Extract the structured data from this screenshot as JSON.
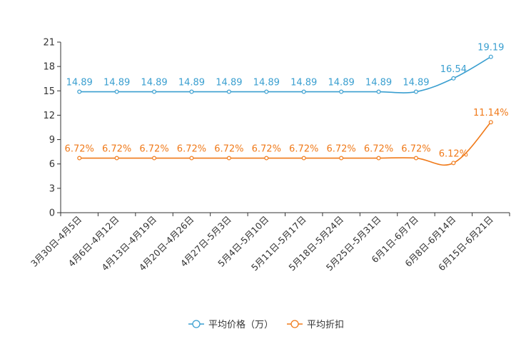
{
  "chart_data": {
    "type": "line",
    "title": "",
    "xlabel": "",
    "ylabel": "",
    "ylim": [
      0,
      21
    ],
    "yticks": [
      0,
      3,
      6,
      9,
      12,
      15,
      18,
      21
    ],
    "ytick_labels": [
      "0",
      "3",
      "6",
      "9",
      "12",
      "15",
      "18",
      "21"
    ],
    "grid": false,
    "legend_position": "bottom-center",
    "categories": [
      "3月30日-4月5日",
      "4月6日-4月12日",
      "4月13日-4月19日",
      "4月20日-4月26日",
      "4月27日-5月3日",
      "5月4日-5月10日",
      "5月11日-5月17日",
      "5月18日-5月24日",
      "5月25日-5月31日",
      "6月1日-6月7日",
      "6月8日-6月14日",
      "6月15日-6月21日"
    ],
    "series": [
      {
        "name": "平均价格（万）",
        "color": "#3a9fd0",
        "values": [
          14.89,
          14.89,
          14.89,
          14.89,
          14.89,
          14.89,
          14.89,
          14.89,
          14.89,
          14.89,
          16.54,
          19.19
        ],
        "labels": [
          "14.89",
          "14.89",
          "14.89",
          "14.89",
          "14.89",
          "14.89",
          "14.89",
          "14.89",
          "14.89",
          "14.89",
          "16.54",
          "19.19"
        ]
      },
      {
        "name": "平均折扣",
        "color": "#f07a1a",
        "values": [
          6.72,
          6.72,
          6.72,
          6.72,
          6.72,
          6.72,
          6.72,
          6.72,
          6.72,
          6.72,
          6.12,
          11.14
        ],
        "labels": [
          "6.72%",
          "6.72%",
          "6.72%",
          "6.72%",
          "6.72%",
          "6.72%",
          "6.72%",
          "6.72%",
          "6.72%",
          "6.72%",
          "6.12%",
          "11.14%"
        ]
      }
    ]
  }
}
